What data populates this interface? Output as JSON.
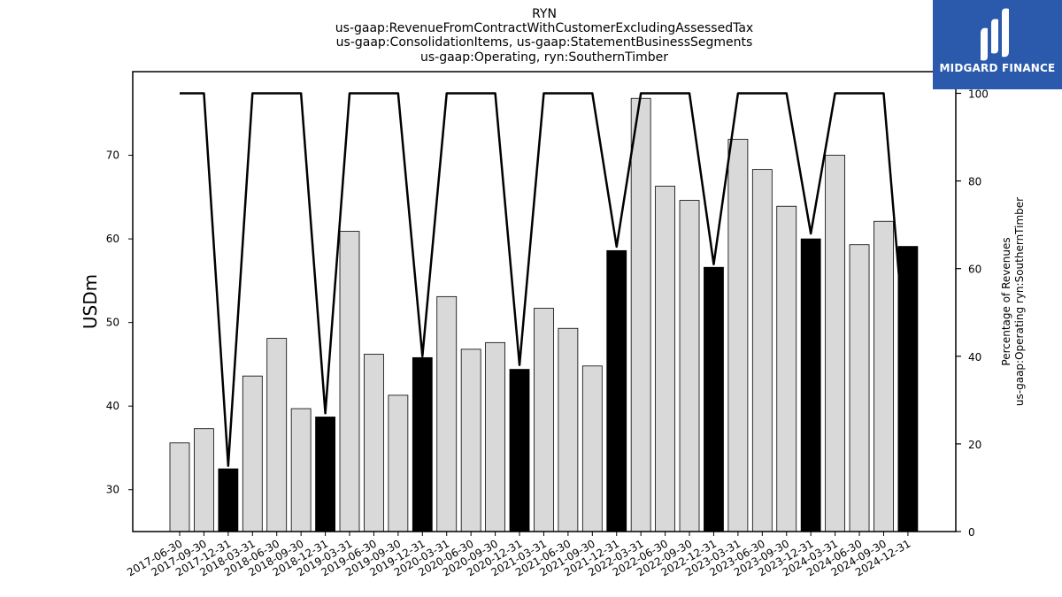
{
  "chart_data": {
    "type": "bar",
    "title_lines": [
      "RYN",
      "us-gaap:RevenueFromContractWithCustomerExcludingAssessedTax",
      "us-gaap:ConsolidationItems, us-gaap:StatementBusinessSegments",
      "us-gaap:Operating, ryn:SouthernTimber"
    ],
    "ylabel": "USDm",
    "y2label_lines": [
      "Percentage of Revenues",
      "us-gaap:Operating ryn:SouthernTimber"
    ],
    "ylim": [
      25,
      80
    ],
    "y2lim": [
      0,
      100
    ],
    "yticks": [
      30,
      40,
      50,
      60,
      70
    ],
    "y2ticks": [
      0,
      20,
      40,
      60,
      80,
      100
    ],
    "categories": [
      "2017-06-30",
      "2017-09-30",
      "2017-12-31",
      "2018-03-31",
      "2018-06-30",
      "2018-09-30",
      "2018-12-31",
      "2019-03-31",
      "2019-06-30",
      "2019-09-30",
      "2019-12-31",
      "2020-03-31",
      "2020-06-30",
      "2020-09-30",
      "2020-12-31",
      "2021-03-31",
      "2021-06-30",
      "2021-09-30",
      "2021-12-31",
      "2022-03-31",
      "2022-06-30",
      "2022-09-30",
      "2022-12-31",
      "2023-03-31",
      "2023-06-30",
      "2023-09-30",
      "2023-12-31",
      "2024-03-31",
      "2024-06-30",
      "2024-09-30",
      "2024-12-31"
    ],
    "series": [
      {
        "values": [
          35.6,
          37.3,
          32.5,
          43.6,
          48.1,
          39.7,
          38.7,
          60.9,
          46.2,
          41.3,
          45.8,
          53.1,
          46.8,
          47.6,
          44.4,
          51.7,
          49.3,
          44.8,
          58.6,
          76.8,
          66.3,
          64.6,
          56.6,
          71.9,
          68.3,
          63.9,
          60.0,
          70.0,
          59.3,
          62.1,
          59.1
        ],
        "highlight": [
          false,
          false,
          true,
          false,
          false,
          false,
          true,
          false,
          false,
          false,
          true,
          false,
          false,
          false,
          true,
          false,
          false,
          false,
          true,
          false,
          false,
          false,
          true,
          false,
          false,
          false,
          true,
          false,
          false,
          false,
          true
        ]
      },
      {
        "axis": "right",
        "type": "line",
        "values": [
          100,
          100,
          15,
          100,
          100,
          100,
          27,
          100,
          100,
          100,
          40,
          100,
          100,
          100,
          38,
          100,
          100,
          100,
          65,
          100,
          100,
          100,
          61,
          100,
          100,
          100,
          68,
          100,
          100,
          100,
          34
        ]
      }
    ],
    "colors": {
      "bar": "#d9d9d9",
      "bar_highlight": "#000000",
      "line": "#000000"
    },
    "grid": false
  },
  "logo": {
    "text": "MIDGARD FINANCE",
    "color": "#2b5aad"
  }
}
